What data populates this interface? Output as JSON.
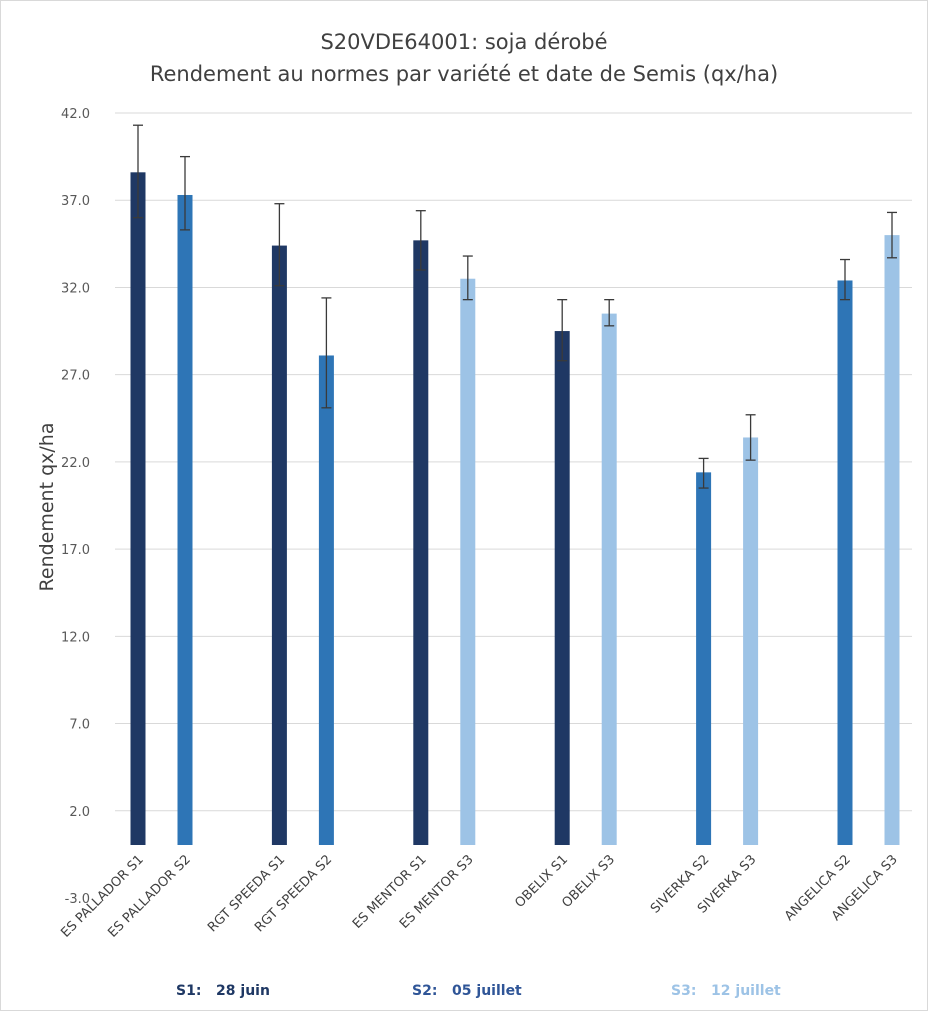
{
  "chart_data": {
    "type": "bar",
    "title": "S20VDE64001: soja dérobé",
    "subtitle": "Rendement au normes par variété et date de Semis (qx/ha)",
    "ylabel": "Rendement qx/ha",
    "xlabel": "",
    "ylim": [
      -3.0,
      42.0
    ],
    "yticks": [
      "-3.0",
      "2.0",
      "7.0",
      "12.0",
      "17.0",
      "22.0",
      "27.0",
      "32.0",
      "37.0",
      "42.0"
    ],
    "grid": true,
    "categories": [
      "ES PALLADOR S1",
      "ES PALLADOR S2",
      "RGT SPEEDA S1",
      "RGT SPEEDA S2",
      "ES MENTOR S1",
      "ES MENTOR S3",
      "OBELIX S1",
      "OBELIX S3",
      "SIVERKA S2",
      "SIVERKA S3",
      "ANGELICA S2",
      "ANGELICA S3"
    ],
    "groups": [
      [
        0,
        1
      ],
      [
        2,
        3
      ],
      [
        4,
        5
      ],
      [
        6,
        7
      ],
      [
        8,
        9
      ],
      [
        10,
        11
      ]
    ],
    "values": [
      38.6,
      37.3,
      34.4,
      28.1,
      34.7,
      32.5,
      29.5,
      30.5,
      21.4,
      23.4,
      32.4,
      35.0
    ],
    "error_low": [
      36.0,
      35.3,
      32.1,
      25.1,
      33.0,
      31.3,
      27.8,
      29.8,
      20.5,
      22.1,
      31.3,
      33.7
    ],
    "error_high": [
      41.3,
      39.5,
      36.8,
      31.4,
      36.4,
      33.8,
      31.3,
      31.3,
      22.2,
      24.7,
      33.6,
      36.3
    ],
    "sowing": [
      "S1",
      "S2",
      "S1",
      "S2",
      "S1",
      "S3",
      "S1",
      "S3",
      "S2",
      "S3",
      "S2",
      "S3"
    ],
    "colors": {
      "S1": "#1f3864",
      "S2": "#2e75b6",
      "S3": "#9dc3e6"
    }
  },
  "legend": {
    "s1": "S1:   28 juin",
    "s2": "S2:   05 juillet",
    "s3": "S3:   12 juillet"
  },
  "legend_colors": {
    "s1": "#1f3864",
    "s2": "#2f5597",
    "s3": "#9dc3e6"
  }
}
